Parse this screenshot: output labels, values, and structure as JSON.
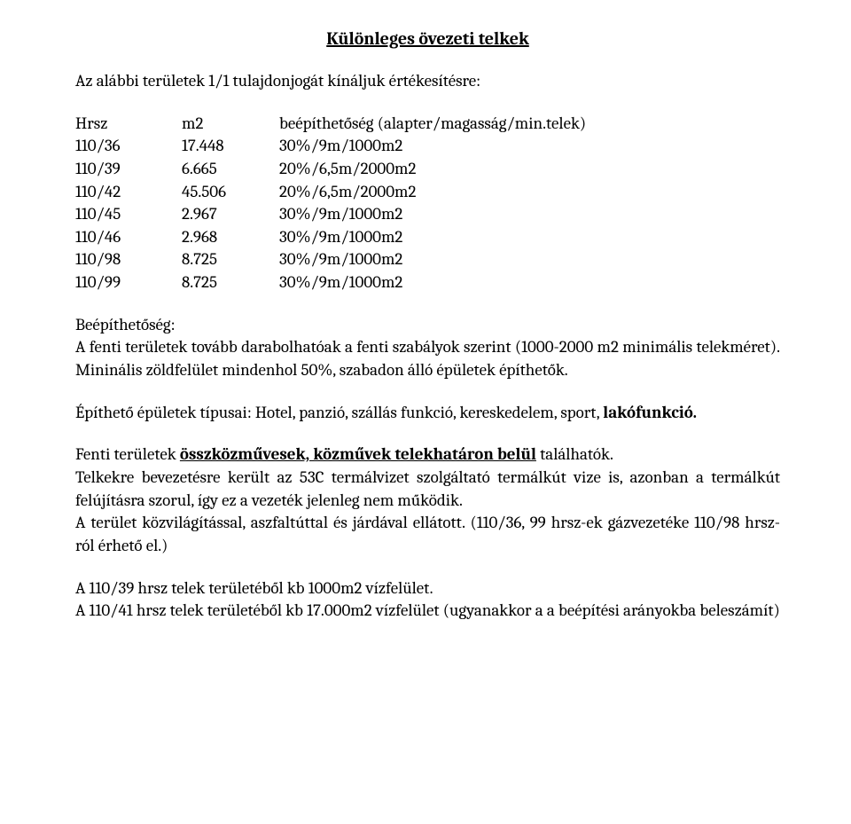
{
  "title": "Különleges övezeti telkek",
  "intro": "Az alábbi területek 1/1 tulajdonjogát kínáljuk értékesítésre:",
  "table": {
    "header": {
      "c1": "Hrsz",
      "c2": "m2",
      "c3": "beépíthetőség (alapter/magasság/min.telek)"
    },
    "rows": [
      {
        "c1": "110/36",
        "c2": "17.448",
        "c3": "30%/9m/1000m2"
      },
      {
        "c1": "110/39",
        "c2": "6.665",
        "c3": "20%/6,5m/2000m2"
      },
      {
        "c1": "110/42",
        "c2": "45.506",
        "c3": "20%/6,5m/2000m2"
      },
      {
        "c1": "110/45",
        "c2": "2.967",
        "c3": "30%/9m/1000m2"
      },
      {
        "c1": "110/46",
        "c2": "2.968",
        "c3": "30%/9m/1000m2"
      },
      {
        "c1": "110/98",
        "c2": "8.725",
        "c3": "30%/9m/1000m2"
      },
      {
        "c1": "110/99",
        "c2": "8.725",
        "c3": "30%/9m/1000m2"
      }
    ]
  },
  "section_label": "Beépíthetőség:",
  "para1": "A fenti területek tovább darabolhatóak a fenti szabályok szerint (1000-2000 m2 minimális telekméret). Mininális zöldfelület mindenhol 50%, szabadon álló épületek építhetők.",
  "para2_a": "Építhető épületek típusai: Hotel, panzió, szállás funkció, kereskedelem, sport, ",
  "para2_b": "lakófunkció.",
  "para3_a": "Fenti területek ",
  "para3_b": "összközművesek, közművek telekhatáron belül",
  "para3_c": " találhatók.",
  "para4": "Telkekre bevezetésre került az 53C termálvizet szolgáltató termálkút vize is, azonban a termálkút felújításra szorul, így ez a vezeték jelenleg nem működik.",
  "para5": "A terület közvilágítással, aszfaltúttal és járdával ellátott. (110/36, 99 hrsz-ek gázvezetéke 110/98 hrsz-ról érhető el.)",
  "para6": "A 110/39 hrsz telek területéből kb 1000m2 vízfelület.",
  "para7": "A 110/41 hrsz telek területéből kb 17.000m2 vízfelület (ugyanakkor a a beépítési arányokba beleszámít)"
}
